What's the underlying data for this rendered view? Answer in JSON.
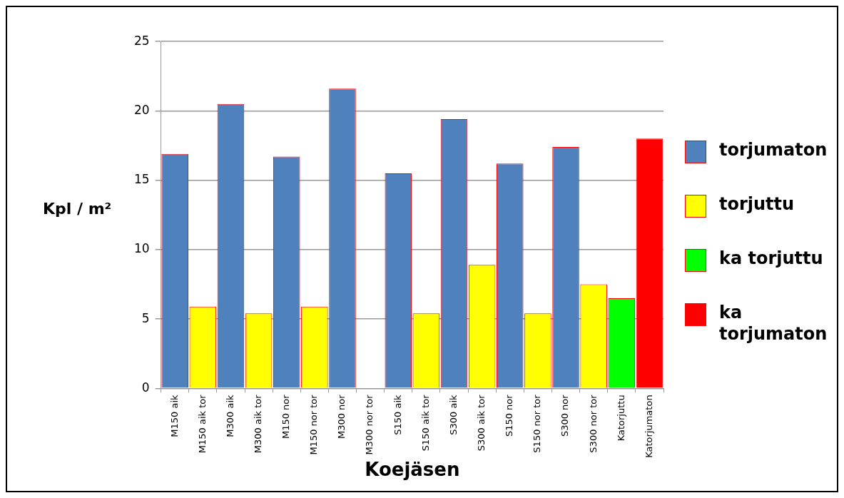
{
  "chart_data": {
    "type": "bar",
    "xlabel": "Koejäsen",
    "ylabel": "Kpl / m²",
    "categories": [
      "M150 aik",
      "M150 aik tor",
      "M300 aik",
      "M300 aik tor",
      "M150 nor",
      "M150 nor tor",
      "M300 nor",
      "M300 nor tor",
      "S150 aik",
      "S150 aik tor",
      "S300 aik",
      "S300 aik tor",
      "S150 nor",
      "S150 nor tor",
      "S300 nor",
      "S300 nor tor",
      "Katorjuttu",
      "Katorjumaton"
    ],
    "series": [
      {
        "name": "torjumaton",
        "color": "#4f81bd",
        "values": [
          16.9,
          null,
          20.5,
          null,
          16.7,
          null,
          21.6,
          null,
          15.5,
          null,
          19.4,
          null,
          16.2,
          null,
          17.4,
          null,
          null,
          null
        ]
      },
      {
        "name": "torjuttu",
        "color": "#ffff00",
        "values": [
          null,
          5.9,
          null,
          5.4,
          null,
          5.9,
          null,
          null,
          null,
          5.4,
          null,
          8.9,
          null,
          5.4,
          null,
          7.5,
          null,
          null
        ]
      },
      {
        "name": "ka torjuttu",
        "color": "#00ff00",
        "values": [
          null,
          null,
          null,
          null,
          null,
          null,
          null,
          null,
          null,
          null,
          null,
          null,
          null,
          null,
          null,
          null,
          6.5,
          null
        ]
      },
      {
        "name": "ka torjumaton",
        "color": "#ff0000",
        "values": [
          null,
          null,
          null,
          null,
          null,
          null,
          null,
          null,
          null,
          null,
          null,
          null,
          null,
          null,
          null,
          null,
          null,
          18.0
        ]
      }
    ],
    "ylim": [
      0,
      25
    ],
    "yticks": [
      0,
      5,
      10,
      15,
      20,
      25
    ],
    "grid": "y",
    "legend": "right"
  }
}
